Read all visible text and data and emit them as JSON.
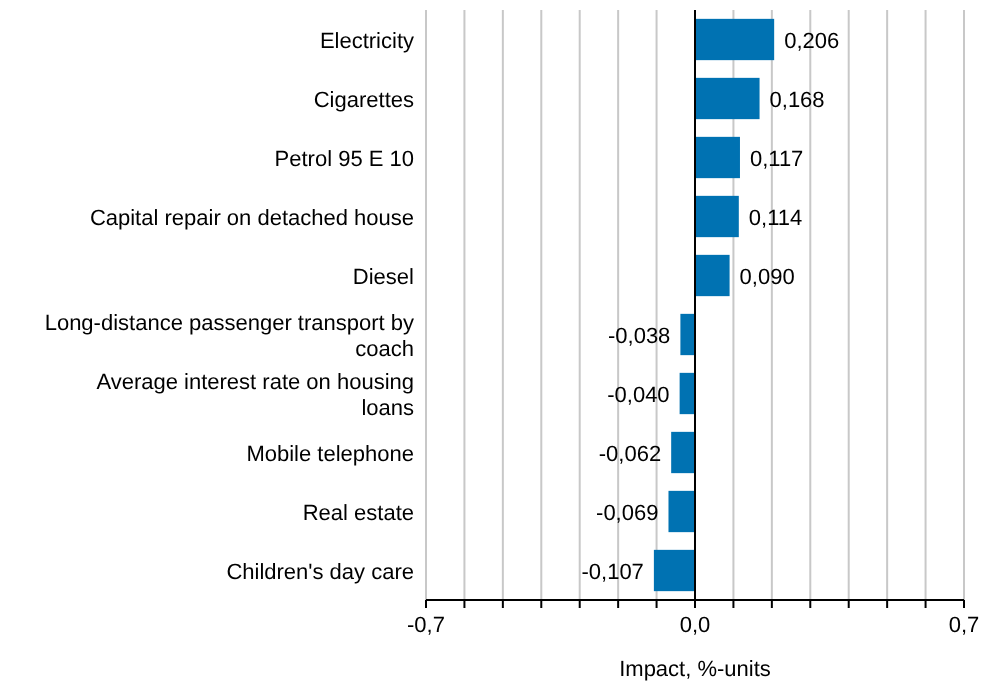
{
  "chart_data": {
    "type": "bar",
    "orientation": "horizontal",
    "xlabel": "Impact, %-units",
    "categories": [
      "Electricity",
      "Cigarettes",
      "Petrol 95 E 10",
      "Capital repair on detached house",
      "Diesel",
      "Long-distance passenger transport by coach",
      "Average interest rate on housing loans",
      "Mobile telephone",
      "Real estate",
      "Children's day care"
    ],
    "values": [
      0.206,
      0.168,
      0.117,
      0.114,
      0.09,
      -0.038,
      -0.04,
      -0.062,
      -0.069,
      -0.107
    ],
    "value_labels": [
      "0,206",
      "0,168",
      "0,117",
      "0,114",
      "0,090",
      "-0,038",
      "-0,040",
      "-0,062",
      "-0,069",
      "-0,107"
    ],
    "color": "#0072b2",
    "xlim": [
      -0.7,
      0.7
    ],
    "xticks": [
      {
        "value": -0.7,
        "label": "-0,7"
      },
      {
        "value": -0.6,
        "label": null
      },
      {
        "value": -0.5,
        "label": null
      },
      {
        "value": -0.4,
        "label": null
      },
      {
        "value": -0.3,
        "label": null
      },
      {
        "value": -0.2,
        "label": null
      },
      {
        "value": -0.1,
        "label": null
      },
      {
        "value": 0,
        "label": "0,0"
      },
      {
        "value": 0.1,
        "label": null
      },
      {
        "value": 0.2,
        "label": null
      },
      {
        "value": 0.3,
        "label": null
      },
      {
        "value": 0.4,
        "label": null
      },
      {
        "value": 0.5,
        "label": null
      },
      {
        "value": 0.6,
        "label": null
      },
      {
        "value": 0.7,
        "label": "0,7"
      }
    ],
    "grid": "x"
  }
}
